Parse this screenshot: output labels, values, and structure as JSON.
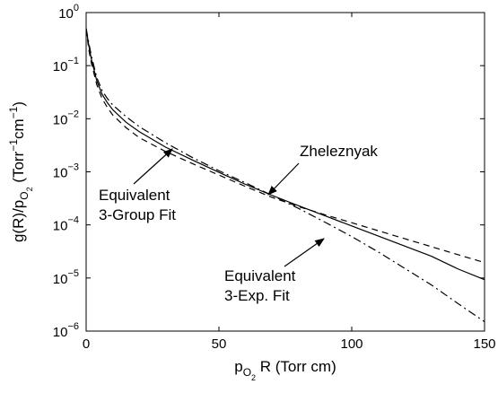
{
  "chart_data": {
    "type": "line",
    "xlim": [
      0,
      150
    ],
    "ylim": [
      1e-06,
      1
    ],
    "yscale": "log",
    "grid": false,
    "x_ticks": [
      {
        "value": 0,
        "label": "0"
      },
      {
        "value": 50,
        "label": "50"
      },
      {
        "value": 100,
        "label": "100"
      },
      {
        "value": 150,
        "label": "150"
      }
    ],
    "y_ticks": [
      {
        "value": 1,
        "mantissa": "10",
        "exp": "0"
      },
      {
        "value": 0.1,
        "mantissa": "10",
        "exp": "-1"
      },
      {
        "value": 0.01,
        "mantissa": "10",
        "exp": "-2"
      },
      {
        "value": 0.001,
        "mantissa": "10",
        "exp": "-3"
      },
      {
        "value": 0.0001,
        "mantissa": "10",
        "exp": "-4"
      },
      {
        "value": 1e-05,
        "mantissa": "10",
        "exp": "-5"
      },
      {
        "value": 1e-06,
        "mantissa": "10",
        "exp": "-6"
      }
    ],
    "xlabel": {
      "p": "p",
      "sub1": "O",
      "sub2": "2",
      "rest": " R (Torr cm)"
    },
    "ylabel": {
      "a": "g(R)/p",
      "sub1": "O",
      "sub2": "2",
      "b": "  (Torr",
      "sup1": "−1",
      "c": "cm",
      "sup2": "−1",
      "d": ")"
    },
    "series": [
      {
        "name": "Zheleznyak",
        "style": "solid",
        "x": [
          0,
          1,
          2,
          4,
          6,
          8,
          10,
          15,
          20,
          30,
          40,
          50,
          60,
          70,
          80,
          90,
          100,
          110,
          120,
          130,
          140,
          150
        ],
        "y": [
          0.5,
          0.24,
          0.13,
          0.052,
          0.029,
          0.02,
          0.0148,
          0.0086,
          0.0057,
          0.0029,
          0.00167,
          0.00098,
          0.00058,
          0.00036,
          0.00023,
          0.000148,
          9.55e-05,
          6.17e-05,
          3.98e-05,
          2.57e-05,
          1.48e-05,
          9.3e-06
        ]
      },
      {
        "name": "Equivalent 3-Group Fit",
        "style": "dashed",
        "x": [
          0,
          1,
          2,
          4,
          6,
          8,
          10,
          15,
          20,
          30,
          40,
          50,
          60,
          70,
          80,
          90,
          100,
          110,
          120,
          130,
          140,
          150
        ],
        "y": [
          0.5,
          0.2,
          0.11,
          0.044,
          0.024,
          0.0163,
          0.0118,
          0.0068,
          0.0044,
          0.0024,
          0.00143,
          0.00087,
          0.00053,
          0.00033,
          0.000221,
          0.000155,
          0.00011,
          7.76e-05,
          5.49e-05,
          3.89e-05,
          2.75e-05,
          1.95e-05
        ]
      },
      {
        "name": "Equivalent 3-Exp. Fit",
        "style": "dashdot",
        "x": [
          0,
          1,
          2,
          4,
          6,
          8,
          10,
          15,
          20,
          30,
          40,
          50,
          60,
          70,
          80,
          90,
          100,
          110,
          120,
          130,
          140,
          150
        ],
        "y": [
          0.5,
          0.27,
          0.15,
          0.06,
          0.034,
          0.024,
          0.0182,
          0.011,
          0.0071,
          0.0035,
          0.00186,
          0.00105,
          0.00062,
          0.00036,
          0.000204,
          0.000112,
          6.03e-05,
          3.09e-05,
          1.51e-05,
          7.4e-06,
          3.3e-06,
          1.5e-06
        ]
      }
    ],
    "annotations": [
      {
        "lines": [
          "Zheleznyak"
        ],
        "arrow_from": [
          76,
          0.0007
        ],
        "arrow_to": [
          70,
          0.00033
        ]
      },
      {
        "lines": [
          "Equivalent",
          "3-Group Fit"
        ],
        "arrow_from": [
          19,
          0.00075
        ],
        "arrow_to": [
          32,
          0.0026
        ]
      },
      {
        "lines": [
          "Equivalent",
          "3-Exp. Fit"
        ],
        "arrow_from": [
          88,
          1.35e-05
        ],
        "arrow_to": [
          101,
          4.2e-05
        ]
      }
    ]
  }
}
